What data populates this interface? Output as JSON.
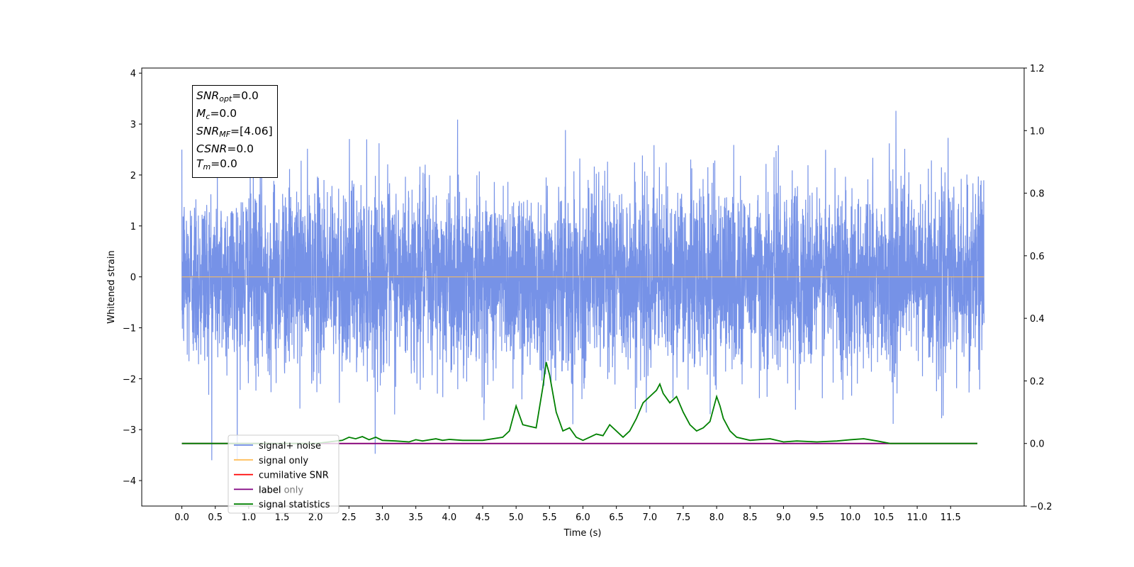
{
  "chart_data": {
    "type": "line",
    "xlabel": "Time (s)",
    "ylabel": "Whitened strain",
    "x_range": [
      0,
      12
    ],
    "xlim": [
      -0.6,
      12.6
    ],
    "ylim_left": [
      -4.5,
      4.1
    ],
    "ylim_right": [
      -0.2,
      1.2
    ],
    "x_ticks": [
      "0.0",
      "0.5",
      "1.0",
      "1.5",
      "2.0",
      "2.5",
      "3.0",
      "3.5",
      "4.0",
      "4.5",
      "5.0",
      "5.5",
      "6.0",
      "6.5",
      "7.0",
      "7.5",
      "8.0",
      "8.5",
      "9.0",
      "9.5",
      "10.0",
      "10.5",
      "11.0",
      "11.5"
    ],
    "y_ticks_left": [
      "4",
      "3",
      "2",
      "1",
      "0",
      "−1",
      "−2",
      "−3",
      "−4"
    ],
    "y_ticks_right": [
      "1.2",
      "1.0",
      "0.8",
      "0.6",
      "0.4",
      "0.2",
      "0.0",
      "−0.2"
    ],
    "grid": false,
    "legend_position": "lower-left",
    "series": [
      {
        "name": "signal+ noise",
        "color": "#6f8ce6",
        "axis": "left",
        "description": "whitened noise, std ~0.9, peaks ~±3.7"
      },
      {
        "name": "signal only",
        "color": "#ffbe5a",
        "axis": "left",
        "value": 0
      },
      {
        "name": "cumilative SNR",
        "color": "#ff0000",
        "axis": "right",
        "value": 0
      },
      {
        "name": "label",
        "color": "#800080",
        "axis": "right",
        "value": 0
      },
      {
        "name": "label only",
        "color": "#cccccc",
        "axis": "right",
        "value": 0
      },
      {
        "name": "signal statistics",
        "color": "#008000",
        "axis": "right",
        "x": [
          0.0,
          2.0,
          2.2,
          2.4,
          2.5,
          2.6,
          2.7,
          2.8,
          2.9,
          3.0,
          3.2,
          3.4,
          3.5,
          3.6,
          3.8,
          3.9,
          4.0,
          4.2,
          4.5,
          4.8,
          4.9,
          5.0,
          5.1,
          5.2,
          5.3,
          5.4,
          5.45,
          5.5,
          5.6,
          5.7,
          5.8,
          5.9,
          6.0,
          6.1,
          6.2,
          6.3,
          6.4,
          6.5,
          6.6,
          6.7,
          6.8,
          6.9,
          7.0,
          7.1,
          7.15,
          7.2,
          7.3,
          7.4,
          7.5,
          7.6,
          7.7,
          7.8,
          7.9,
          8.0,
          8.05,
          8.1,
          8.2,
          8.3,
          8.5,
          8.8,
          9.0,
          9.2,
          9.5,
          9.8,
          10.0,
          10.2,
          10.4,
          10.6,
          11.0,
          11.5,
          11.9
        ],
        "y": [
          0.0,
          0.0,
          0.005,
          0.01,
          0.02,
          0.015,
          0.022,
          0.012,
          0.02,
          0.01,
          0.008,
          0.005,
          0.012,
          0.008,
          0.015,
          0.01,
          0.013,
          0.01,
          0.01,
          0.02,
          0.04,
          0.12,
          0.06,
          0.055,
          0.05,
          0.18,
          0.26,
          0.22,
          0.1,
          0.04,
          0.05,
          0.02,
          0.01,
          0.02,
          0.03,
          0.025,
          0.06,
          0.04,
          0.02,
          0.04,
          0.08,
          0.13,
          0.15,
          0.17,
          0.19,
          0.16,
          0.13,
          0.15,
          0.1,
          0.06,
          0.04,
          0.05,
          0.07,
          0.15,
          0.12,
          0.08,
          0.04,
          0.02,
          0.01,
          0.015,
          0.005,
          0.008,
          0.005,
          0.008,
          0.012,
          0.015,
          0.008,
          0.0,
          0.0,
          0.0,
          0.0
        ]
      }
    ],
    "annotation_lines": [
      {
        "sym": "SNR",
        "sub": "opt",
        "value": "=0.0"
      },
      {
        "sym": "M",
        "sub": "c",
        "value": "=0.0"
      },
      {
        "sym": "SNR",
        "sub": "MF",
        "value": "=[4.06]"
      },
      {
        "sym": "CSNR",
        "sub": "",
        "value": "=0.0"
      },
      {
        "sym": "T",
        "sub": "m",
        "value": "=0.0"
      }
    ]
  }
}
